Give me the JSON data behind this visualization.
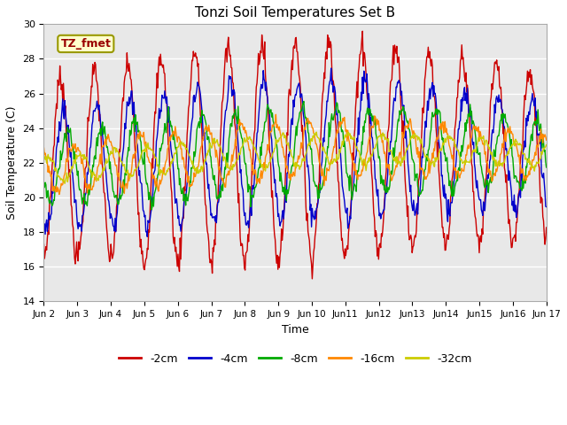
{
  "title": "Tonzi Soil Temperatures Set B",
  "xlabel": "Time",
  "ylabel": "Soil Temperature (C)",
  "ylim": [
    14,
    30
  ],
  "yticks": [
    14,
    16,
    18,
    20,
    22,
    24,
    26,
    28,
    30
  ],
  "xtick_labels": [
    "Jun 2",
    "Jun 3",
    "Jun 4",
    "Jun 5",
    "Jun 6",
    "Jun 7",
    "Jun 8",
    "Jun 9",
    "Jun 10",
    "Jun11",
    "Jun12",
    "Jun13",
    "Jun14",
    "Jun15",
    "Jun16",
    "Jun 17"
  ],
  "series_colors": [
    "#cc0000",
    "#0000cc",
    "#00aa00",
    "#ff8800",
    "#cccc00"
  ],
  "series_labels": [
    "-2cm",
    "-4cm",
    "-8cm",
    "-16cm",
    "-32cm"
  ],
  "annotation_text": "TZ_fmet",
  "annotation_color": "#990000",
  "annotation_bg": "#ffffcc",
  "annotation_border": "#999900",
  "background_color": "#e8e8e8",
  "n_days": 15,
  "n_points_per_day": 48,
  "amplitudes": [
    5.0,
    3.2,
    2.0,
    1.3,
    0.7
  ],
  "phase_lags": [
    0.0,
    0.08,
    0.22,
    0.4,
    0.6
  ],
  "base_mean": 22.5
}
